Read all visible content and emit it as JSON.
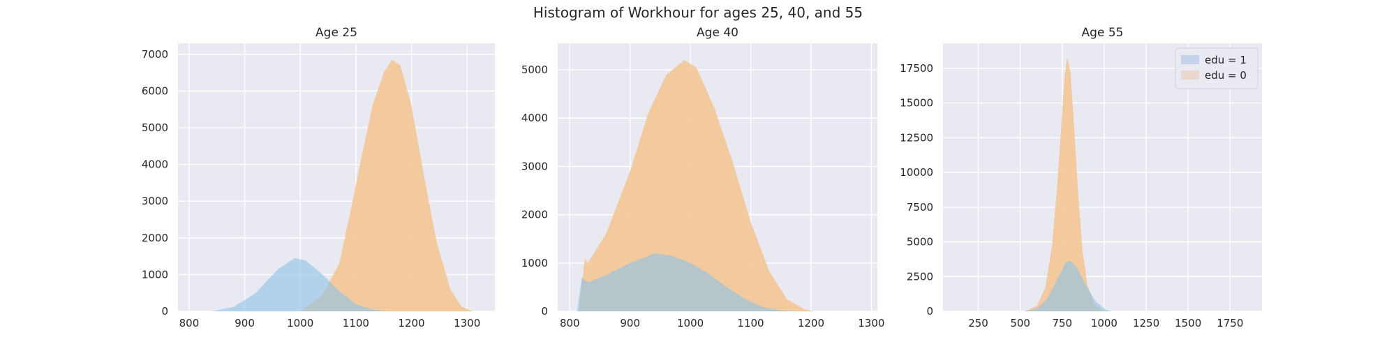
{
  "suptitle": "Histogram of Workhour for ages 25, 40, and 55",
  "colors": {
    "edu1_fill": "#8fc3e6",
    "edu0_fill": "#f3c48f",
    "overlap_fill": "#c9c0a6",
    "axes_bg": "#e9e9f1",
    "grid": "#ffffff",
    "legend_edu1_patch": "#c4d3ea",
    "legend_edu0_patch": "#ead8d0"
  },
  "legend": {
    "placement": "top-right of Age 55 panel",
    "entries": [
      {
        "label": "edu = 1",
        "color_key": "legend_edu1_patch"
      },
      {
        "label": "edu = 0",
        "color_key": "legend_edu0_patch"
      }
    ]
  },
  "chart_data": [
    {
      "type": "area",
      "title": "Age 25",
      "xlim": [
        780,
        1350
      ],
      "ylim": [
        0,
        7300
      ],
      "xticks": [
        800,
        900,
        1000,
        1100,
        1200,
        1300
      ],
      "yticks": [
        0,
        1000,
        2000,
        3000,
        4000,
        5000,
        6000,
        7000
      ],
      "grid": true,
      "series": [
        {
          "name": "edu = 1",
          "color_key": "edu1_fill",
          "x": [
            840,
            880,
            920,
            960,
            990,
            1010,
            1040,
            1070,
            1100,
            1130,
            1160
          ],
          "y": [
            0,
            120,
            500,
            1150,
            1450,
            1380,
            1000,
            550,
            200,
            50,
            0
          ]
        },
        {
          "name": "edu = 0",
          "color_key": "edu0_fill",
          "x": [
            1000,
            1040,
            1070,
            1090,
            1110,
            1130,
            1150,
            1165,
            1180,
            1200,
            1220,
            1245,
            1270,
            1290,
            1310
          ],
          "y": [
            0,
            450,
            1300,
            2700,
            4200,
            5600,
            6500,
            6850,
            6700,
            5600,
            3900,
            1900,
            600,
            130,
            0
          ]
        }
      ]
    },
    {
      "type": "area",
      "title": "Age 40",
      "xlim": [
        780,
        1310
      ],
      "ylim": [
        0,
        5550
      ],
      "xticks": [
        800,
        900,
        1000,
        1100,
        1200,
        1300
      ],
      "yticks": [
        0,
        1000,
        2000,
        3000,
        4000,
        5000
      ],
      "grid": true,
      "series": [
        {
          "name": "edu = 1",
          "color_key": "edu1_fill",
          "x": [
            812,
            820,
            830,
            860,
            900,
            940,
            970,
            1000,
            1030,
            1060,
            1090,
            1120,
            1150,
            1180
          ],
          "y": [
            0,
            700,
            600,
            750,
            1000,
            1200,
            1150,
            1000,
            780,
            500,
            260,
            90,
            20,
            0
          ]
        },
        {
          "name": "edu = 0",
          "color_key": "edu0_fill",
          "x": [
            815,
            825,
            830,
            860,
            900,
            930,
            960,
            990,
            1010,
            1040,
            1070,
            1100,
            1130,
            1160,
            1190,
            1205
          ],
          "y": [
            0,
            1100,
            1000,
            1600,
            2900,
            4100,
            4900,
            5200,
            5050,
            4200,
            3100,
            1850,
            850,
            250,
            40,
            0
          ]
        }
      ]
    },
    {
      "type": "area",
      "title": "Age 55",
      "xlim": [
        40,
        1940
      ],
      "ylim": [
        0,
        19300
      ],
      "xticks": [
        250,
        500,
        750,
        1000,
        1250,
        1500,
        1750
      ],
      "yticks": [
        0,
        2500,
        5000,
        7500,
        10000,
        12500,
        15000,
        17500
      ],
      "grid": true,
      "series": [
        {
          "name": "edu = 1",
          "color_key": "edu1_fill",
          "x": [
            520,
            600,
            660,
            720,
            770,
            800,
            840,
            890,
            950,
            1010,
            1050
          ],
          "y": [
            0,
            200,
            900,
            2300,
            3500,
            3650,
            3100,
            1900,
            700,
            120,
            0
          ]
        },
        {
          "name": "edu = 0",
          "color_key": "edu0_fill",
          "x": [
            530,
            600,
            650,
            690,
            720,
            745,
            765,
            780,
            800,
            820,
            845,
            870,
            900,
            940,
            990,
            1030
          ],
          "y": [
            0,
            400,
            1700,
            4800,
            9000,
            13500,
            17000,
            18300,
            17200,
            13500,
            8500,
            4500,
            1900,
            500,
            60,
            0
          ]
        }
      ]
    }
  ]
}
